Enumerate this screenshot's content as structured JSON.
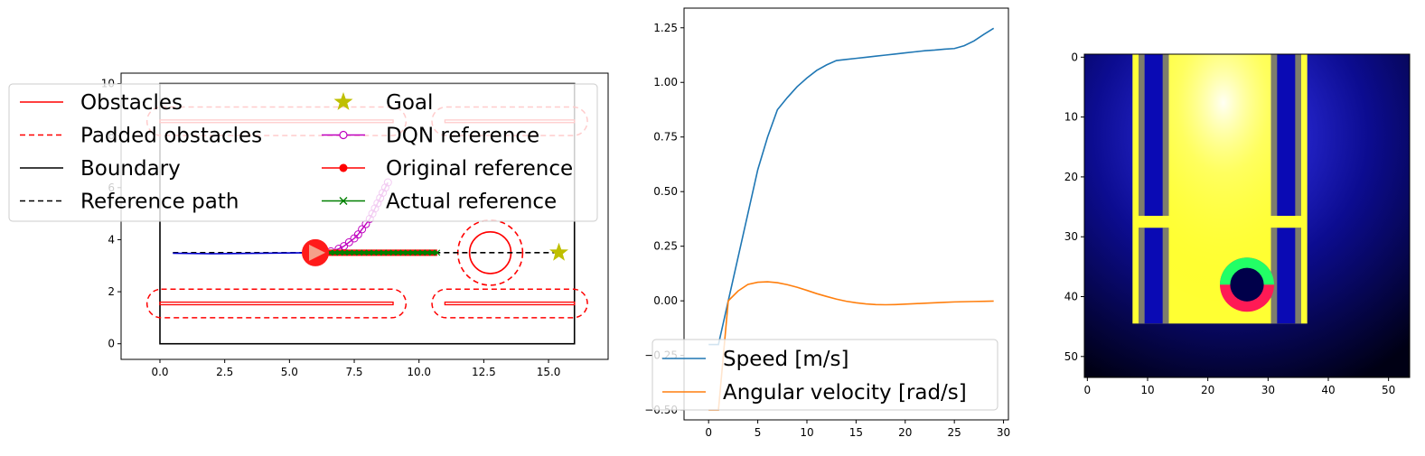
{
  "colors": {
    "obstacle": "#ff0000",
    "boundary": "#000000",
    "goal": "#bfbf00",
    "dqn": "#bf00bf",
    "original": "#ff0000",
    "actual": "#008000",
    "path_blue": "#0000cc",
    "speed": "#1f77b4",
    "angular": "#ff7f0e"
  },
  "chart_data": [
    {
      "type": "line",
      "name": "map",
      "xlim": [
        -1.5,
        17.3
      ],
      "ylim": [
        -0.6,
        10.4
      ],
      "xticks": [
        0.0,
        2.5,
        5.0,
        7.5,
        10.0,
        12.5,
        15.0
      ],
      "xtick_labels": [
        "0.0",
        "2.5",
        "5.0",
        "7.5",
        "10.0",
        "12.5",
        "15.0"
      ],
      "yticks": [
        0,
        2,
        4,
        6,
        8,
        10
      ],
      "ytick_labels": [
        "0",
        "2",
        "4",
        "6",
        "8",
        "10"
      ],
      "legend": {
        "placement": "upper left",
        "entries": [
          {
            "label": "Obstacles",
            "style": "solid-line",
            "color": "#ff0000"
          },
          {
            "label": "Goal",
            "style": "star",
            "color": "#bfbf00"
          },
          {
            "label": "Padded obstacles",
            "style": "dashed-line",
            "color": "#ff0000"
          },
          {
            "label": "DQN reference",
            "style": "line-open-circle",
            "color": "#bf00bf"
          },
          {
            "label": "Boundary",
            "style": "solid-line",
            "color": "#000000"
          },
          {
            "label": "Original reference",
            "style": "line-dot",
            "color": "#ff0000"
          },
          {
            "label": "Reference path",
            "style": "dashed-line",
            "color": "#000000"
          },
          {
            "label": "Actual reference",
            "style": "line-x",
            "color": "#008000"
          }
        ]
      },
      "boundary": {
        "x": [
          0,
          16
        ],
        "y": [
          0,
          10
        ]
      },
      "obstacles_rect": [
        {
          "x": [
            0,
            9
          ],
          "y": [
            1.5,
            1.6
          ]
        },
        {
          "x": [
            11,
            16
          ],
          "y": [
            1.5,
            1.6
          ]
        },
        {
          "x": [
            0,
            9
          ],
          "y": [
            8.5,
            8.6
          ]
        },
        {
          "x": [
            11,
            16
          ],
          "y": [
            8.5,
            8.6
          ]
        }
      ],
      "obstacle_circle": {
        "cx": 12.75,
        "cy": 3.5,
        "r": 0.8,
        "padded_r": 1.25
      },
      "reference_path": {
        "x": [
          0.5,
          15.4
        ],
        "y": [
          3.5,
          3.5
        ]
      },
      "goal": {
        "x": 15.4,
        "y": 3.5
      },
      "robot": {
        "x": 6.0,
        "y": 3.5
      },
      "past_trajectory": {
        "x": [
          0.5,
          2,
          4,
          6
        ],
        "y": [
          3.48,
          3.46,
          3.48,
          3.5
        ]
      },
      "original_reference": {
        "x": [
          6.0,
          10.7
        ],
        "y": [
          3.5,
          3.5
        ]
      },
      "actual_reference": {
        "x": [
          6.0,
          10.7
        ],
        "y": [
          3.5,
          3.5
        ]
      },
      "dqn_reference": {
        "x": [
          6.3,
          6.6,
          6.9,
          7.1,
          7.3,
          7.5,
          7.65,
          7.8,
          7.95,
          8.1,
          8.2,
          8.3,
          8.4,
          8.5,
          8.6,
          8.7,
          8.8
        ],
        "y": [
          3.5,
          3.55,
          3.65,
          3.75,
          3.9,
          4.05,
          4.2,
          4.4,
          4.6,
          4.8,
          5.0,
          5.2,
          5.4,
          5.6,
          5.8,
          6.0,
          6.2
        ]
      }
    },
    {
      "type": "line",
      "name": "velocities",
      "xlim": [
        -2.5,
        30.5
      ],
      "ylim": [
        -0.545,
        1.34
      ],
      "xticks": [
        0,
        5,
        10,
        15,
        20,
        25,
        30
      ],
      "xtick_labels": [
        "0",
        "5",
        "10",
        "15",
        "20",
        "25",
        "30"
      ],
      "yticks": [
        -0.5,
        -0.25,
        0.0,
        0.25,
        0.5,
        0.75,
        1.0,
        1.25
      ],
      "ytick_labels": [
        "−0.50",
        "−0.25",
        "0.00",
        "0.25",
        "0.50",
        "0.75",
        "1.00",
        "1.25"
      ],
      "legend": {
        "placement": "lower left"
      },
      "series": [
        {
          "name": "Speed [m/s]",
          "color": "#1f77b4",
          "x": [
            0,
            1,
            2,
            3,
            4,
            5,
            6,
            7,
            8,
            9,
            10,
            11,
            12,
            13,
            14,
            15,
            16,
            17,
            18,
            19,
            20,
            21,
            22,
            23,
            24,
            25,
            26,
            27,
            28,
            29
          ],
          "y": [
            -0.2,
            -0.2,
            0.0,
            0.2,
            0.4,
            0.6,
            0.75,
            0.875,
            0.93,
            0.98,
            1.02,
            1.055,
            1.08,
            1.1,
            1.105,
            1.11,
            1.115,
            1.12,
            1.125,
            1.13,
            1.135,
            1.14,
            1.145,
            1.148,
            1.152,
            1.155,
            1.168,
            1.19,
            1.22,
            1.248
          ]
        },
        {
          "name": "Angular velocity [rad/s]",
          "color": "#ff7f0e",
          "x": [
            0,
            1,
            2,
            3,
            4,
            5,
            6,
            7,
            8,
            9,
            10,
            11,
            12,
            13,
            14,
            15,
            16,
            17,
            18,
            19,
            20,
            21,
            22,
            23,
            24,
            25,
            26,
            27,
            28,
            29
          ],
          "y": [
            -0.5,
            -0.5,
            0.0,
            0.045,
            0.075,
            0.085,
            0.087,
            0.083,
            0.074,
            0.062,
            0.048,
            0.033,
            0.02,
            0.008,
            -0.002,
            -0.009,
            -0.014,
            -0.017,
            -0.018,
            -0.017,
            -0.015,
            -0.013,
            -0.011,
            -0.009,
            -0.007,
            -0.005,
            -0.004,
            -0.003,
            -0.002,
            -0.001
          ]
        }
      ]
    },
    {
      "type": "heatmap",
      "name": "grid-image",
      "shape": [
        54,
        54
      ],
      "xlim": [
        -0.5,
        53.5
      ],
      "ylim": [
        53.5,
        -0.5
      ],
      "xticks": [
        0,
        10,
        20,
        30,
        40,
        50
      ],
      "xtick_labels": [
        "0",
        "10",
        "20",
        "30",
        "40",
        "50"
      ],
      "yticks": [
        0,
        10,
        20,
        30,
        40,
        50
      ],
      "ytick_labels": [
        "0",
        "10",
        "20",
        "30",
        "40",
        "50"
      ],
      "regions": [
        {
          "kind": "free-space-yellow",
          "x": [
            8,
            36
          ],
          "y": [
            0,
            44
          ]
        },
        {
          "kind": "obstacle-blue",
          "x": [
            9,
            13
          ],
          "y": [
            0,
            26
          ]
        },
        {
          "kind": "obstacle-blue",
          "x": [
            31,
            35
          ],
          "y": [
            0,
            26
          ]
        },
        {
          "kind": "obstacle-blue",
          "x": [
            9,
            13
          ],
          "y": [
            29,
            44
          ]
        },
        {
          "kind": "obstacle-blue",
          "x": [
            31,
            35
          ],
          "y": [
            29,
            44
          ]
        },
        {
          "kind": "circle-obstacle",
          "cx": 26.5,
          "cy": 38,
          "r": 4.5
        }
      ]
    }
  ]
}
